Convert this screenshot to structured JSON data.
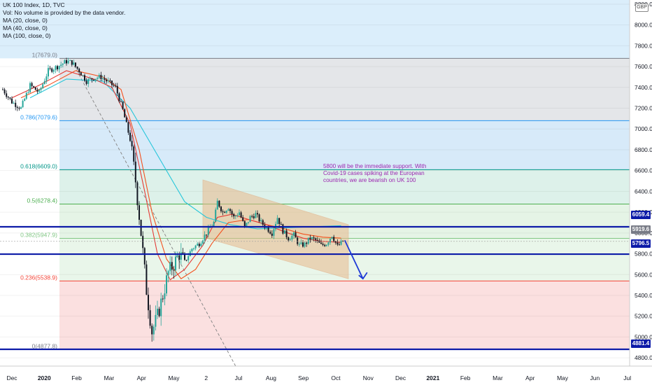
{
  "header": {
    "title": "UK 100 Index, 1D, TVC",
    "volume_note": "Vol: No volume is provided by the data vendor.",
    "ma20": "MA (20, close, 0)",
    "ma40": "MA (40, close, 0)",
    "ma100": "MA (100, close, 0)"
  },
  "currency_badge": "GBP",
  "annotation_text": "5800 will be the immediate support. With Covid-19 cases spiking at the European countries, we are bearish on UK 100",
  "price_tags": [
    {
      "label": "6059.4",
      "color": "#0d1ba8"
    },
    {
      "label": "5919.6",
      "color": "#787b86"
    },
    {
      "label": "5796.5",
      "color": "#0d1ba8"
    },
    {
      "label": "4881.4",
      "color": "#0d1ba8"
    }
  ],
  "colors": {
    "up": "#26a69a",
    "down": "#131722",
    "ma20": "#e53935",
    "ma40": "#f4511e",
    "ma100": "#26c6da",
    "level_line": "#0d1ba8",
    "arrow": "#1e3ad6"
  },
  "chart_data": {
    "type": "candlestick",
    "symbol": "UK 100 Index",
    "timeframe": "1D",
    "x_tick_labels": [
      "Dec",
      "2020",
      "Feb",
      "Mar",
      "Apr",
      "May",
      "2",
      "Jul",
      "Aug",
      "Sep",
      "Oct",
      "Nov",
      "Dec",
      "2021",
      "Feb",
      "Mar",
      "Apr",
      "May",
      "Jun",
      "Jul"
    ],
    "y_tick_labels": [
      "4800.0",
      "5000.0",
      "5200.0",
      "5400.0",
      "5600.0",
      "5800.0",
      "6000.0",
      "6200.0",
      "6400.0",
      "6600.0",
      "6800.0",
      "7000.0",
      "7200.0",
      "7400.0",
      "7600.0",
      "7800.0",
      "8000.0",
      "8200.0"
    ],
    "ylim": [
      4720,
      8240
    ],
    "fib_levels": [
      {
        "label": "1(7679.0)",
        "value": 7679.0,
        "color": "#787b86"
      },
      {
        "label": "0.786(7079.6)",
        "value": 7079.6,
        "color": "#2196f3"
      },
      {
        "label": "0.618(6609.0)",
        "value": 6609.0,
        "color": "#009688"
      },
      {
        "label": "0.5(6278.4)",
        "value": 6278.4,
        "color": "#4caf50"
      },
      {
        "label": "0.382(5947.9)",
        "value": 5947.9,
        "color": "#81c784"
      },
      {
        "label": "0.236(5538.9)",
        "value": 5538.9,
        "color": "#f44336"
      },
      {
        "label": "0(4877.8)",
        "value": 4877.8,
        "color": "#787b86"
      }
    ],
    "horizontal_levels": [
      6059.4,
      5796.5,
      4881.4
    ],
    "last_price": 5919.6,
    "price_path": [
      [
        0,
        7380
      ],
      [
        5,
        7260
      ],
      [
        10,
        7200
      ],
      [
        15,
        7420
      ],
      [
        20,
        7350
      ],
      [
        25,
        7560
      ],
      [
        30,
        7600
      ],
      [
        35,
        7650
      ],
      [
        38,
        7640
      ],
      [
        42,
        7560
      ],
      [
        46,
        7460
      ],
      [
        50,
        7490
      ],
      [
        54,
        7500
      ],
      [
        58,
        7450
      ],
      [
        62,
        7400
      ],
      [
        66,
        7180
      ],
      [
        70,
        6900
      ],
      [
        73,
        6500
      ],
      [
        76,
        6000
      ],
      [
        79,
        5450
      ],
      [
        82,
        5050
      ],
      [
        85,
        5200
      ],
      [
        88,
        5400
      ],
      [
        91,
        5620
      ],
      [
        94,
        5700
      ],
      [
        97,
        5800
      ],
      [
        100,
        5720
      ],
      [
        104,
        5850
      ],
      [
        108,
        5900
      ],
      [
        112,
        6000
      ],
      [
        116,
        6100
      ],
      [
        118,
        6300
      ],
      [
        121,
        6200
      ],
      [
        124,
        6250
      ],
      [
        127,
        6150
      ],
      [
        130,
        6200
      ],
      [
        133,
        6050
      ],
      [
        136,
        6150
      ],
      [
        139,
        6180
      ],
      [
        142,
        6100
      ],
      [
        145,
        6050
      ],
      [
        148,
        6000
      ],
      [
        151,
        6150
      ],
      [
        154,
        6020
      ],
      [
        157,
        5950
      ],
      [
        160,
        5980
      ],
      [
        163,
        5880
      ],
      [
        166,
        5890
      ],
      [
        169,
        5950
      ],
      [
        172,
        5930
      ],
      [
        175,
        5880
      ],
      [
        178,
        5900
      ],
      [
        181,
        5980
      ],
      [
        184,
        5870
      ],
      [
        187,
        5920
      ]
    ],
    "ma20_path": [
      [
        5,
        7300
      ],
      [
        20,
        7420
      ],
      [
        35,
        7560
      ],
      [
        50,
        7480
      ],
      [
        60,
        7400
      ],
      [
        70,
        7050
      ],
      [
        78,
        6400
      ],
      [
        85,
        5800
      ],
      [
        92,
        5550
      ],
      [
        100,
        5650
      ],
      [
        110,
        5880
      ],
      [
        118,
        6150
      ],
      [
        126,
        6180
      ],
      [
        135,
        6130
      ],
      [
        145,
        6080
      ],
      [
        155,
        6010
      ],
      [
        165,
        5950
      ],
      [
        175,
        5920
      ],
      [
        186,
        5910
      ]
    ],
    "ma40_path": [
      [
        10,
        7300
      ],
      [
        25,
        7420
      ],
      [
        40,
        7560
      ],
      [
        55,
        7500
      ],
      [
        65,
        7380
      ],
      [
        75,
        6800
      ],
      [
        82,
        6200
      ],
      [
        90,
        5750
      ],
      [
        98,
        5560
      ],
      [
        106,
        5650
      ],
      [
        115,
        5900
      ],
      [
        124,
        6100
      ],
      [
        135,
        6130
      ],
      [
        145,
        6080
      ],
      [
        155,
        6040
      ],
      [
        165,
        5990
      ],
      [
        176,
        5960
      ],
      [
        186,
        5950
      ]
    ],
    "ma100_path": [
      [
        15,
        7300
      ],
      [
        35,
        7480
      ],
      [
        55,
        7460
      ],
      [
        70,
        7200
      ],
      [
        85,
        6750
      ],
      [
        100,
        6300
      ],
      [
        112,
        6150
      ],
      [
        125,
        6080
      ],
      [
        140,
        6040
      ],
      [
        155,
        6050
      ],
      [
        170,
        6060
      ],
      [
        186,
        6070
      ]
    ]
  }
}
